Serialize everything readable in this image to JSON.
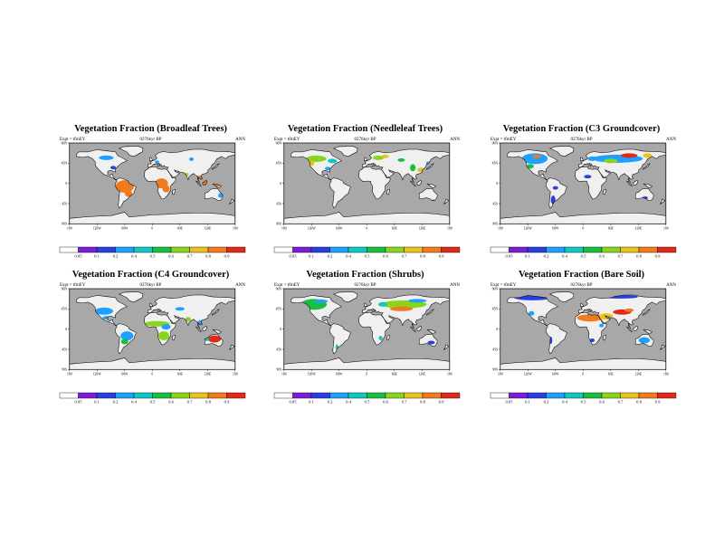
{
  "colors": {
    "ocean": "#a8a8a8",
    "land": "#f0f0f0",
    "coast": "#000000",
    "scale": [
      "#ffffff",
      "#7a1fd6",
      "#2a3fe0",
      "#1ea0ff",
      "#10c8c0",
      "#18c040",
      "#8ad41e",
      "#e8c21e",
      "#f07a1e",
      "#e02a1a"
    ]
  },
  "panels": [
    {
      "title": "Vegetation Fraction (Broadleaf Trees)",
      "left_label": "Expt = tfmEY",
      "mid_label": "0276kyr BP",
      "right_label": "ANN",
      "tick_labels": [
        "0.05",
        "0.1",
        "0.2",
        "0.4",
        "0.5",
        "0.6",
        "0.7",
        "0.8",
        "0.9"
      ]
    },
    {
      "title": "Vegetation Fraction (Needleleaf Trees)",
      "left_label": "Expt = tfmEY",
      "mid_label": "0276kyr BP",
      "right_label": "ANN",
      "tick_labels": [
        "0.05",
        "0.1",
        "0.2",
        "0.4",
        "0.5",
        "0.6",
        "0.7",
        "0.8",
        "0.9"
      ]
    },
    {
      "title": "Vegetation Fraction (C3 Groundcover)",
      "left_label": "Expt = tfmEY",
      "mid_label": "0276kyr BP",
      "right_label": "ANN",
      "tick_labels": [
        "0.05",
        "0.1",
        "0.2",
        "0.4",
        "0.5",
        "0.6",
        "0.7",
        "0.8",
        "0.9"
      ]
    },
    {
      "title": "Vegetation Fraction (C4 Groundcover)",
      "left_label": "Expt = tfmEY",
      "mid_label": "0276kyr BP",
      "right_label": "ANN",
      "tick_labels": [
        "0.05",
        "0.1",
        "0.2",
        "0.4",
        "0.5",
        "0.6",
        "0.7",
        "0.8",
        "0.9"
      ]
    },
    {
      "title": "Vegetation Fraction (Shrubs)",
      "left_label": "Expt = tfmEY",
      "mid_label": "0276kyr BP",
      "right_label": "ANN",
      "tick_labels": [
        "0.05",
        "0.1",
        "0.2",
        "0.4",
        "0.5",
        "0.6",
        "0.7",
        "0.8",
        "0.9"
      ]
    },
    {
      "title": "Vegetation Fraction (Bare Soil)",
      "left_label": "Expt = tfmEY",
      "mid_label": "0276kyr BP",
      "right_label": "ANN",
      "tick_labels": [
        "0.05",
        "0.1",
        "0.2",
        "0.4",
        "0.5",
        "0.6",
        "0.7",
        "0.8",
        "0.9"
      ]
    }
  ],
  "chart_data": [
    {
      "type": "heatmap",
      "title": "Vegetation Fraction (Broadleaf Trees)",
      "x_ticks": [
        "180",
        "120W",
        "60W",
        "0",
        "60E",
        "120E",
        "180"
      ],
      "y_ticks": [
        "90N",
        "45N",
        "0",
        "45S",
        "90S"
      ],
      "xlim": [
        -180,
        180
      ],
      "ylim": [
        -90,
        90
      ],
      "levels": [
        0.05,
        0.1,
        0.2,
        0.4,
        0.5,
        0.6,
        0.7,
        0.8,
        0.9
      ],
      "regions": [
        {
          "lon": -60,
          "lat": -7,
          "rx": 20,
          "ry": 14,
          "value": 0.85
        },
        {
          "lon": -52,
          "lat": -22,
          "rx": 8,
          "ry": 8,
          "value": 0.85
        },
        {
          "lon": 20,
          "lat": 0,
          "rx": 14,
          "ry": 11,
          "value": 0.85
        },
        {
          "lon": 30,
          "lat": -12,
          "rx": 8,
          "ry": 8,
          "value": 0.85
        },
        {
          "lon": 105,
          "lat": 10,
          "rx": 10,
          "ry": 8,
          "value": 0.85
        },
        {
          "lon": 112,
          "lat": 2,
          "rx": 13,
          "ry": 5,
          "value": 0.85
        },
        {
          "lon": 140,
          "lat": -5,
          "rx": 6,
          "ry": 3,
          "value": 0.85
        },
        {
          "lon": -100,
          "lat": 57,
          "rx": 16,
          "ry": 5,
          "value": 0.25
        },
        {
          "lon": -85,
          "lat": 35,
          "rx": 6,
          "ry": 4,
          "value": 0.1
        },
        {
          "lon": 10,
          "lat": 48,
          "rx": 5,
          "ry": 3,
          "value": 0.3
        },
        {
          "lon": 85,
          "lat": 54,
          "rx": 5,
          "ry": 4,
          "value": 0.2
        },
        {
          "lon": 148,
          "lat": -27,
          "rx": 5,
          "ry": 5,
          "value": 0.25
        },
        {
          "lon": 75,
          "lat": 20,
          "rx": 4,
          "ry": 4,
          "value": 0.75
        }
      ]
    },
    {
      "type": "heatmap",
      "title": "Vegetation Fraction (Needleleaf Trees)",
      "x_ticks": [
        "180",
        "120W",
        "60W",
        "0",
        "60E",
        "120E",
        "180"
      ],
      "y_ticks": [
        "90N",
        "45N",
        "0",
        "45S",
        "90S"
      ],
      "xlim": [
        -180,
        180
      ],
      "ylim": [
        -90,
        90
      ],
      "levels": [
        0.05,
        0.1,
        0.2,
        0.4,
        0.5,
        0.6,
        0.7,
        0.8,
        0.9
      ],
      "regions": [
        {
          "lon": -110,
          "lat": 55,
          "rx": 22,
          "ry": 7,
          "value": 0.6
        },
        {
          "lon": -120,
          "lat": 45,
          "rx": 6,
          "ry": 6,
          "value": 0.75
        },
        {
          "lon": -75,
          "lat": 50,
          "rx": 10,
          "ry": 5,
          "value": 0.45
        },
        {
          "lon": -85,
          "lat": 33,
          "rx": 6,
          "ry": 4,
          "value": 0.3
        },
        {
          "lon": 25,
          "lat": 57,
          "rx": 12,
          "ry": 5,
          "value": 0.6
        },
        {
          "lon": 40,
          "lat": 60,
          "rx": 8,
          "ry": 4,
          "value": 0.75
        },
        {
          "lon": 75,
          "lat": 52,
          "rx": 8,
          "ry": 4,
          "value": 0.55
        },
        {
          "lon": 100,
          "lat": 35,
          "rx": 6,
          "ry": 8,
          "value": 0.55
        },
        {
          "lon": 118,
          "lat": 30,
          "rx": 8,
          "ry": 5,
          "value": 0.75
        },
        {
          "lon": 135,
          "lat": 45,
          "rx": 6,
          "ry": 4,
          "value": 0.3
        },
        {
          "lon": 145,
          "lat": -38,
          "rx": 3,
          "ry": 2,
          "value": 0.15
        }
      ]
    },
    {
      "type": "heatmap",
      "title": "Vegetation Fraction (C3 Groundcover)",
      "x_ticks": [
        "180",
        "120W",
        "60W",
        "0",
        "60E",
        "120E",
        "180"
      ],
      "y_ticks": [
        "90N",
        "45N",
        "0",
        "45S",
        "90S"
      ],
      "xlim": [
        -180,
        180
      ],
      "ylim": [
        -90,
        90
      ],
      "levels": [
        0.05,
        0.1,
        0.2,
        0.4,
        0.5,
        0.6,
        0.7,
        0.8,
        0.9
      ],
      "regions": [
        {
          "lon": -105,
          "lat": 55,
          "rx": 28,
          "ry": 12,
          "value": 0.2
        },
        {
          "lon": -100,
          "lat": 60,
          "rx": 10,
          "ry": 4,
          "value": 0.85
        },
        {
          "lon": -115,
          "lat": 38,
          "rx": 8,
          "ry": 5,
          "value": 0.55
        },
        {
          "lon": 75,
          "lat": 55,
          "rx": 55,
          "ry": 9,
          "value": 0.3
        },
        {
          "lon": 60,
          "lat": 50,
          "rx": 15,
          "ry": 5,
          "value": 0.6
        },
        {
          "lon": 100,
          "lat": 62,
          "rx": 18,
          "ry": 5,
          "value": 0.9
        },
        {
          "lon": 140,
          "lat": 62,
          "rx": 10,
          "ry": 5,
          "value": 0.75
        },
        {
          "lon": 20,
          "lat": 55,
          "rx": 10,
          "ry": 5,
          "value": 0.25
        },
        {
          "lon": -65,
          "lat": -37,
          "rx": 5,
          "ry": 10,
          "value": 0.15
        },
        {
          "lon": 135,
          "lat": -32,
          "rx": 6,
          "ry": 3,
          "value": 0.15
        },
        {
          "lon": 10,
          "lat": 15,
          "rx": 8,
          "ry": 4,
          "value": 0.1
        },
        {
          "lon": -60,
          "lat": -10,
          "rx": 6,
          "ry": 4,
          "value": 0.1
        }
      ]
    },
    {
      "type": "heatmap",
      "title": "Vegetation Fraction (C4 Groundcover)",
      "x_ticks": [
        "180",
        "120W",
        "60W",
        "0",
        "60E",
        "120E",
        "180"
      ],
      "y_ticks": [
        "90N",
        "45N",
        "0",
        "45S",
        "90S"
      ],
      "xlim": [
        -180,
        180
      ],
      "ylim": [
        -90,
        90
      ],
      "levels": [
        0.05,
        0.1,
        0.2,
        0.4,
        0.5,
        0.6,
        0.7,
        0.8,
        0.9
      ],
      "regions": [
        {
          "lon": 10,
          "lat": 12,
          "rx": 28,
          "ry": 6,
          "value": 0.6
        },
        {
          "lon": 25,
          "lat": -15,
          "rx": 12,
          "ry": 10,
          "value": 0.65
        },
        {
          "lon": 30,
          "lat": 5,
          "rx": 10,
          "ry": 6,
          "value": 0.2
        },
        {
          "lon": -55,
          "lat": -15,
          "rx": 14,
          "ry": 10,
          "value": 0.2
        },
        {
          "lon": -60,
          "lat": -28,
          "rx": 8,
          "ry": 6,
          "value": 0.55
        },
        {
          "lon": -105,
          "lat": 40,
          "rx": 20,
          "ry": 8,
          "value": 0.2
        },
        {
          "lon": -100,
          "lat": 25,
          "rx": 8,
          "ry": 4,
          "value": 0.35
        },
        {
          "lon": 78,
          "lat": 22,
          "rx": 6,
          "ry": 5,
          "value": 0.6
        },
        {
          "lon": 105,
          "lat": 15,
          "rx": 6,
          "ry": 5,
          "value": 0.2
        },
        {
          "lon": 60,
          "lat": 45,
          "rx": 10,
          "ry": 4,
          "value": 0.3
        },
        {
          "lon": 135,
          "lat": -22,
          "rx": 14,
          "ry": 8,
          "value": 0.9
        },
        {
          "lon": 118,
          "lat": -22,
          "rx": 5,
          "ry": 5,
          "value": 0.4
        }
      ]
    },
    {
      "type": "heatmap",
      "title": "Vegetation Fraction (Shrubs)",
      "x_ticks": [
        "180",
        "120W",
        "60W",
        "0",
        "60E",
        "120E",
        "180"
      ],
      "y_ticks": [
        "90N",
        "45N",
        "0",
        "45S",
        "90S"
      ],
      "xlim": [
        -180,
        180
      ],
      "ylim": [
        -90,
        90
      ],
      "levels": [
        0.05,
        0.1,
        0.2,
        0.4,
        0.5,
        0.6,
        0.7,
        0.8,
        0.9
      ],
      "regions": [
        {
          "lon": -115,
          "lat": 55,
          "rx": 28,
          "ry": 12,
          "value": 0.55
        },
        {
          "lon": -100,
          "lat": 62,
          "rx": 15,
          "ry": 4,
          "value": 0.3
        },
        {
          "lon": 80,
          "lat": 55,
          "rx": 50,
          "ry": 9,
          "value": 0.6
        },
        {
          "lon": 75,
          "lat": 45,
          "rx": 25,
          "ry": 5,
          "value": 0.8
        },
        {
          "lon": 110,
          "lat": 63,
          "rx": 20,
          "ry": 4,
          "value": 0.3
        },
        {
          "lon": 35,
          "lat": 55,
          "rx": 10,
          "ry": 5,
          "value": 0.45
        },
        {
          "lon": 30,
          "lat": -20,
          "rx": 4,
          "ry": 5,
          "value": 0.4
        },
        {
          "lon": -65,
          "lat": -40,
          "rx": 3,
          "ry": 6,
          "value": 0.45
        },
        {
          "lon": 140,
          "lat": -30,
          "rx": 8,
          "ry": 4,
          "value": 0.1
        }
      ]
    },
    {
      "type": "heatmap",
      "title": "Vegetation Fraction (Bare Soil)",
      "x_ticks": [
        "180",
        "120W",
        "60W",
        "0",
        "60E",
        "120E",
        "180"
      ],
      "y_ticks": [
        "90N",
        "45N",
        "0",
        "45S",
        "90S"
      ],
      "xlim": [
        -180,
        180
      ],
      "ylim": [
        -90,
        90
      ],
      "levels": [
        0.05,
        0.1,
        0.2,
        0.4,
        0.5,
        0.6,
        0.7,
        0.8,
        0.9
      ],
      "regions": [
        {
          "lon": 15,
          "lat": 25,
          "rx": 28,
          "ry": 8,
          "value": 0.85
        },
        {
          "lon": 50,
          "lat": 28,
          "rx": 15,
          "ry": 7,
          "value": 0.75
        },
        {
          "lon": 85,
          "lat": 38,
          "rx": 20,
          "ry": 6,
          "value": 0.9
        },
        {
          "lon": 100,
          "lat": 42,
          "rx": 10,
          "ry": 4,
          "value": 0.8
        },
        {
          "lon": -110,
          "lat": 70,
          "rx": 40,
          "ry": 6,
          "value": 0.1
        },
        {
          "lon": 80,
          "lat": 72,
          "rx": 40,
          "ry": 4,
          "value": 0.15
        },
        {
          "lon": -112,
          "lat": 35,
          "rx": 6,
          "ry": 5,
          "value": 0.2
        },
        {
          "lon": 133,
          "lat": -25,
          "rx": 12,
          "ry": 7,
          "value": 0.2
        },
        {
          "lon": 20,
          "lat": -25,
          "rx": 5,
          "ry": 4,
          "value": 0.1
        },
        {
          "lon": -70,
          "lat": -25,
          "rx": 3,
          "ry": 8,
          "value": 0.1
        },
        {
          "lon": 40,
          "lat": 8,
          "rx": 5,
          "ry": 4,
          "value": 0.2
        }
      ]
    }
  ]
}
